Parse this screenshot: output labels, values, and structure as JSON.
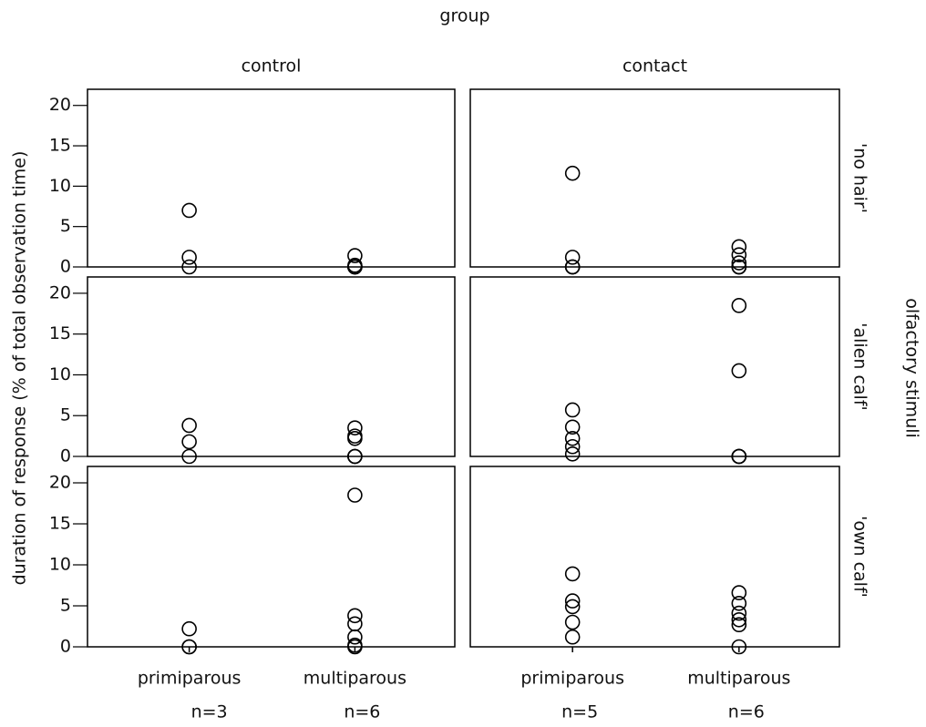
{
  "chart_data": {
    "type": "scatter",
    "title": "group",
    "y_label": "duration of response (% of total observation time)",
    "row_facet_label": "olfactory stimuli",
    "columns": [
      "control",
      "contact"
    ],
    "rows": [
      "'no hair'",
      "'alien calf'",
      "'own calf'"
    ],
    "categories": [
      "primiparous",
      "multiparous"
    ],
    "n_labels": [
      [
        "n=3",
        "n=6"
      ],
      [
        "n=5",
        "n=6"
      ]
    ],
    "marker_color": "#000000",
    "ylim": [
      0,
      22
    ],
    "yticks": [
      0,
      5,
      10,
      15,
      20
    ],
    "panels": [
      [
        [
          [
            7,
            1.2,
            0
          ],
          [
            1.4,
            0.2,
            0,
            0,
            0,
            0
          ]
        ],
        [
          [
            11.6,
            1.2,
            0,
            0,
            0
          ],
          [
            2.5,
            1.5,
            0.5,
            0,
            0,
            0
          ]
        ]
      ],
      [
        [
          [
            3.8,
            1.8,
            0
          ],
          [
            3.5,
            2.5,
            2.2,
            0,
            0,
            0
          ]
        ],
        [
          [
            5.7,
            3.6,
            2.2,
            1.2,
            0.3
          ],
          [
            18.5,
            10.5,
            0,
            0,
            0,
            0
          ]
        ]
      ],
      [
        [
          [
            2.2,
            0,
            0
          ],
          [
            18.5,
            3.8,
            2.8,
            1.2,
            0.2,
            0
          ]
        ],
        [
          [
            8.9,
            5.6,
            4.9,
            3,
            1.2
          ],
          [
            6.6,
            5.3,
            4.1,
            3.3,
            2.7,
            0
          ]
        ]
      ]
    ]
  }
}
